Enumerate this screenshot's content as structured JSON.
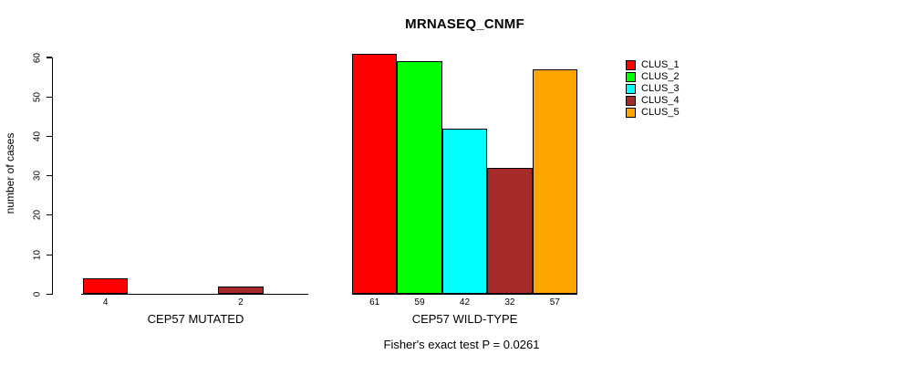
{
  "chart_data": {
    "type": "bar",
    "title": "MRNASEQ_CNMF",
    "ylabel": "number of cases",
    "ylim": [
      0,
      60
    ],
    "yticks": [
      0,
      10,
      20,
      30,
      40,
      50,
      60
    ],
    "grid": false,
    "legend_position": "right",
    "legend": [
      {
        "name": "CLUS_1",
        "color": "#FF0000"
      },
      {
        "name": "CLUS_2",
        "color": "#00FF00"
      },
      {
        "name": "CLUS_3",
        "color": "#00FFFF"
      },
      {
        "name": "CLUS_4",
        "color": "#A52A2A"
      },
      {
        "name": "CLUS_5",
        "color": "#FFA500"
      }
    ],
    "groups": [
      {
        "label": "CEP57 MUTATED",
        "values": [
          4,
          0,
          0,
          2,
          0
        ],
        "bar_labels": [
          "4",
          "",
          "",
          "2",
          ""
        ]
      },
      {
        "label": "CEP57 WILD-TYPE",
        "values": [
          61,
          59,
          42,
          32,
          57
        ],
        "bar_labels": [
          "61",
          "59",
          "42",
          "32",
          "57"
        ]
      }
    ],
    "annotation": "Fisher's exact test P = 0.0261"
  }
}
